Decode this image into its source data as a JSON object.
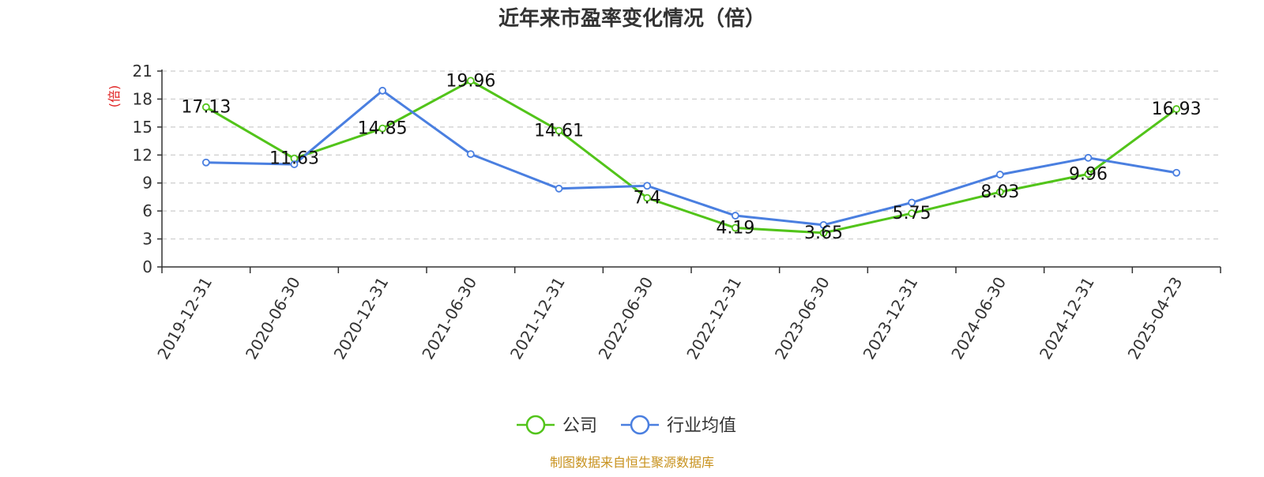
{
  "chart_data": {
    "type": "line",
    "title": "近年来市盈率变化情况（倍）",
    "ylabel": "(倍)",
    "ylim": [
      0,
      21
    ],
    "yticks": [
      0,
      3,
      6,
      9,
      12,
      15,
      18,
      21
    ],
    "grid": true,
    "legend_position": "bottom-center",
    "categories": [
      "2019-12-31",
      "2020-06-30",
      "2020-12-31",
      "2021-06-30",
      "2021-12-31",
      "2022-06-30",
      "2022-12-31",
      "2023-06-30",
      "2023-12-31",
      "2024-06-30",
      "2024-12-31",
      "2025-04-23"
    ],
    "series": [
      {
        "name": "公司",
        "color": "#52c41a",
        "values": [
          17.13,
          11.63,
          14.85,
          19.96,
          14.61,
          7.4,
          4.19,
          3.65,
          5.75,
          8.03,
          9.96,
          16.93
        ],
        "data_labels": [
          "17.13",
          "11.63",
          "14.85",
          "19.96",
          "14.61",
          "7.4",
          "4.19",
          "3.65",
          "5.75",
          "8.03",
          "9.96",
          "16.93"
        ]
      },
      {
        "name": "行业均值",
        "color": "#4a7fe0",
        "values": [
          11.2,
          11.0,
          18.9,
          12.1,
          8.4,
          8.7,
          5.5,
          4.5,
          6.9,
          9.9,
          11.7,
          10.1
        ]
      }
    ],
    "source": "制图数据来自恒生聚源数据库",
    "colors": {
      "title": "#333333",
      "ylabel": "#e02020",
      "axis": "#333333",
      "grid": "#cccccc",
      "source": "#c8921e"
    }
  }
}
